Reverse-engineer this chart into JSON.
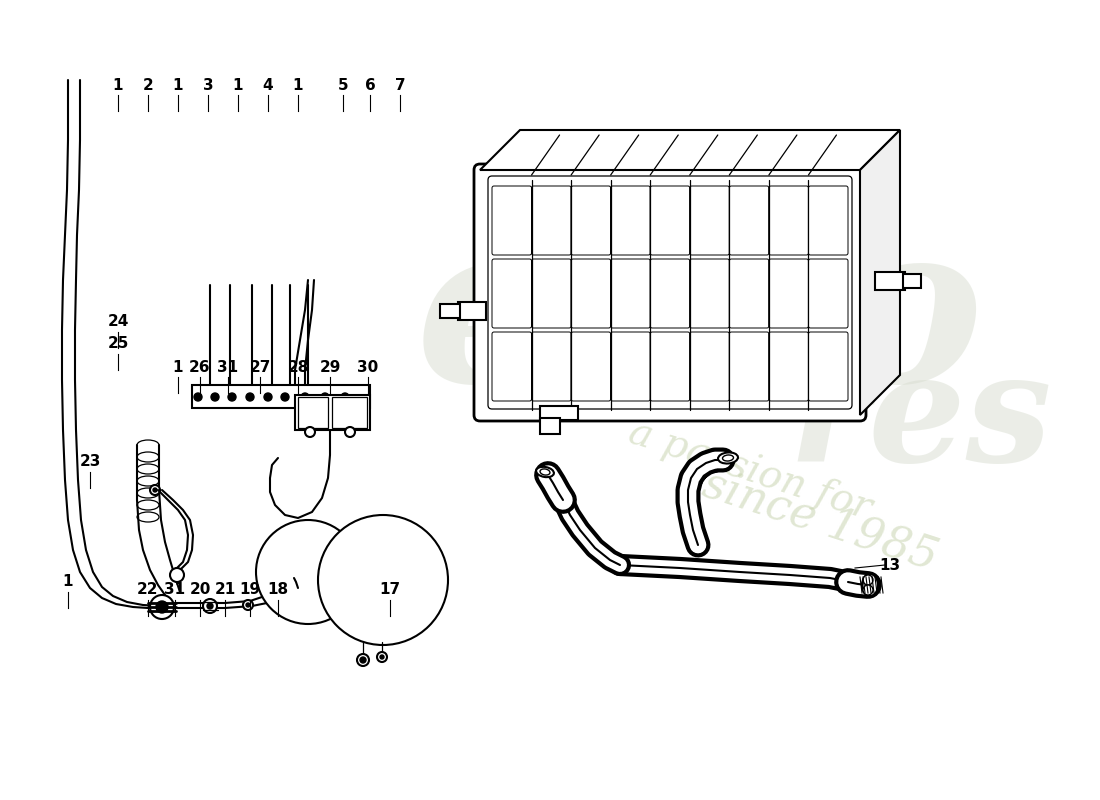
{
  "background_color": "#ffffff",
  "line_color": "#000000",
  "top_labels": [
    [
      "1",
      118,
      93
    ],
    [
      "2",
      148,
      93
    ],
    [
      "1",
      178,
      93
    ],
    [
      "3",
      208,
      93
    ],
    [
      "1",
      238,
      93
    ],
    [
      "4",
      268,
      93
    ],
    [
      "1",
      298,
      93
    ],
    [
      "5",
      343,
      93
    ],
    [
      "6",
      370,
      93
    ],
    [
      "7",
      400,
      93
    ]
  ],
  "mid_labels": [
    [
      "24",
      118,
      330
    ],
    [
      "25",
      118,
      352
    ],
    [
      "1",
      178,
      375
    ],
    [
      "26",
      200,
      375
    ],
    [
      "31",
      228,
      375
    ],
    [
      "27",
      260,
      375
    ],
    [
      "28",
      298,
      375
    ],
    [
      "29",
      330,
      375
    ],
    [
      "30",
      368,
      375
    ]
  ],
  "bot_labels": [
    [
      "23",
      90,
      470
    ],
    [
      "1",
      68,
      590
    ],
    [
      "22",
      148,
      598
    ],
    [
      "31",
      175,
      598
    ],
    [
      "20",
      200,
      598
    ],
    [
      "21",
      225,
      598
    ],
    [
      "19",
      250,
      598
    ],
    [
      "18",
      278,
      598
    ],
    [
      "17",
      390,
      598
    ]
  ],
  "other_labels": [
    [
      "13",
      890,
      565
    ]
  ]
}
